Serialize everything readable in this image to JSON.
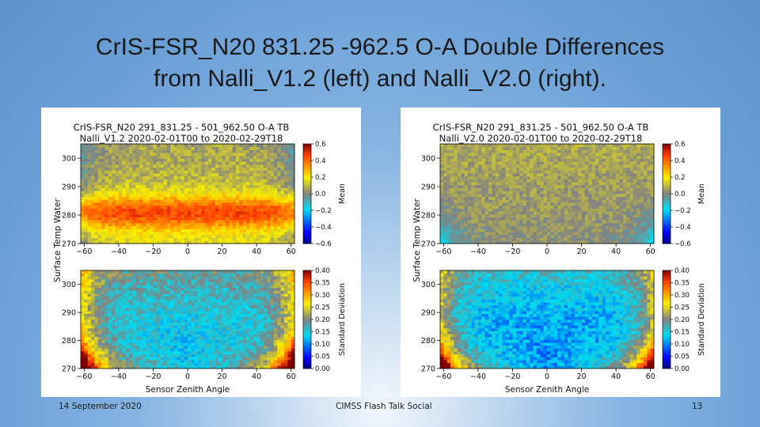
{
  "slide": {
    "title_line1": "CrIS-FSR_N20 831.25 -962.5 O-A Double Differences",
    "title_line2": "from Nalli_V1.2 (left) and Nalli_V2.0 (right).",
    "footer_date": "14 September 2020",
    "footer_event": "CIMSS Flash Talk Social",
    "page_number": "13"
  },
  "chart_data": [
    {
      "type": "heatmap",
      "panel": "left",
      "title": "CrIS-FSR_N20 291_831.25 - 501_962.50 O-A TB",
      "subtitle": "Nalli_V1.2 2020-02-01T00 to 2020-02-29T18",
      "xlabel": "Sensor Zenith Angle",
      "ylabel": "Surface Temp Water",
      "x_ticks": [
        "−60",
        "−40",
        "−20",
        "0",
        "20",
        "40",
        "60"
      ],
      "y_ticks": [
        "270",
        "280",
        "290",
        "300"
      ],
      "xlim": [
        -62,
        62
      ],
      "ylim": [
        270,
        305
      ],
      "subplots": [
        {
          "name": "Mean",
          "colorbar_label": "Mean",
          "colorbar_ticks": [
            "0.6",
            "0.4",
            "0.2",
            "0.0",
            "−0.2",
            "−0.4",
            "−0.6"
          ],
          "vmin": -0.6,
          "vmax": 0.6,
          "pattern": "Mostly positive 0.1–0.4 with strongest values (~0.3) near 278–285 K; weaker toward high temperatures and extreme angles"
        },
        {
          "name": "Standard Deviation",
          "colorbar_label": "Standard Deviation",
          "colorbar_ticks": [
            "0.40",
            "0.35",
            "0.30",
            "0.25",
            "0.20",
            "0.15",
            "0.10",
            "0.05",
            "0.00"
          ],
          "vmin": 0.0,
          "vmax": 0.4,
          "pattern": "Central values ~0.1–0.15; higher (0.25–0.4) at extreme angles and lowest temperatures"
        }
      ]
    },
    {
      "type": "heatmap",
      "panel": "right",
      "title": "CrIS-FSR_N20 291_831.25 - 501_962.50 O-A TB",
      "subtitle": "Nalli_V2.0 2020-02-01T00 to 2020-02-29T18",
      "xlabel": "Sensor Zenith Angle",
      "ylabel": "Surface Temp Water",
      "x_ticks": [
        "−60",
        "−40",
        "−20",
        "0",
        "20",
        "40",
        "60"
      ],
      "y_ticks": [
        "270",
        "280",
        "290",
        "300"
      ],
      "xlim": [
        -62,
        62
      ],
      "ylim": [
        270,
        305
      ],
      "subplots": [
        {
          "name": "Mean",
          "colorbar_label": "Mean",
          "colorbar_ticks": [
            "0.6",
            "0.4",
            "0.2",
            "0.0",
            "−0.2",
            "−0.4",
            "−0.6"
          ],
          "vmin": -0.6,
          "vmax": 0.6,
          "pattern": "Near zero (−0.05 to 0.1) across most of the domain; slight negative at extreme angles near 270–275 K"
        },
        {
          "name": "Standard Deviation",
          "colorbar_label": "Standard Deviation",
          "colorbar_ticks": [
            "0.40",
            "0.35",
            "0.30",
            "0.25",
            "0.20",
            "0.15",
            "0.10",
            "0.05",
            "0.00"
          ],
          "vmin": 0.0,
          "vmax": 0.4,
          "pattern": "Central values ~0.08–0.12; elevated (0.25–0.4) at extreme angles and lowest temperatures"
        }
      ]
    }
  ]
}
